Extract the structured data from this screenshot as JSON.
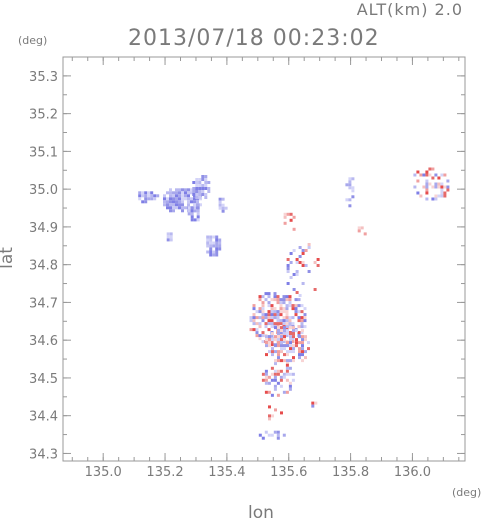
{
  "header": {
    "alt_label": "ALT(km)  2.0",
    "timestamp": "2013/07/18 00:23:02"
  },
  "chart_data": {
    "type": "heatmap",
    "title": "2013/07/18 00:23:02",
    "subtitle": "ALT(km)  2.0",
    "xlabel": "lon",
    "ylabel": "lat",
    "x_unit": "(deg)",
    "y_unit": "(deg)",
    "xlim": [
      134.87,
      136.17
    ],
    "ylim": [
      34.28,
      35.35
    ],
    "x_ticks": [
      135.0,
      135.2,
      135.4,
      135.6,
      135.8,
      136.0
    ],
    "x_tick_labels": [
      "135.0",
      "135.2",
      "135.4",
      "135.6",
      "135.8",
      "136.0"
    ],
    "y_ticks": [
      34.3,
      34.4,
      34.5,
      34.6,
      34.7,
      34.8,
      34.9,
      35.0,
      35.1,
      35.2,
      35.3
    ],
    "y_tick_labels": [
      "34.3",
      "34.4",
      "34.5",
      "34.6",
      "34.7",
      "34.8",
      "34.9",
      "35.0",
      "35.1",
      "35.2",
      "35.3"
    ],
    "grid": false,
    "colors": {
      "negative": "#7f7fe6",
      "positive": "#e64c4c",
      "axis": "#999999"
    },
    "clusters": [
      {
        "lon": 135.14,
        "lat": 34.985,
        "rlon": 0.03,
        "rlat": 0.012,
        "sign": -1,
        "density": "solid"
      },
      {
        "lon": 135.25,
        "lat": 34.975,
        "rlon": 0.06,
        "rlat": 0.03,
        "sign": -1,
        "density": "solid"
      },
      {
        "lon": 135.31,
        "lat": 35.01,
        "rlon": 0.025,
        "rlat": 0.03,
        "sign": -1,
        "density": "solid"
      },
      {
        "lon": 135.29,
        "lat": 34.945,
        "rlon": 0.02,
        "rlat": 0.02,
        "sign": -1,
        "density": "solid"
      },
      {
        "lon": 135.35,
        "lat": 34.855,
        "rlon": 0.02,
        "rlat": 0.025,
        "sign": -1,
        "density": "solid"
      },
      {
        "lon": 135.38,
        "lat": 34.965,
        "rlon": 0.01,
        "rlat": 0.015,
        "sign": -1,
        "density": "solid"
      },
      {
        "lon": 135.21,
        "lat": 34.88,
        "rlon": 0.008,
        "rlat": 0.008,
        "sign": -1,
        "density": "solid"
      },
      {
        "lon": 135.56,
        "lat": 34.66,
        "rlon": 0.09,
        "rlat": 0.07,
        "sign": 0,
        "density": "dense"
      },
      {
        "lon": 135.59,
        "lat": 34.59,
        "rlon": 0.07,
        "rlat": 0.05,
        "sign": 0,
        "density": "dense"
      },
      {
        "lon": 135.56,
        "lat": 34.5,
        "rlon": 0.05,
        "rlat": 0.04,
        "sign": 0,
        "density": "medium"
      },
      {
        "lon": 135.64,
        "lat": 34.79,
        "rlon": 0.05,
        "rlat": 0.07,
        "sign": 0,
        "density": "sparse"
      },
      {
        "lon": 135.55,
        "lat": 34.41,
        "rlon": 0.03,
        "rlat": 0.02,
        "sign": 1,
        "density": "sparse"
      },
      {
        "lon": 135.54,
        "lat": 34.355,
        "rlon": 0.04,
        "rlat": 0.008,
        "sign": -1,
        "density": "sparse"
      },
      {
        "lon": 135.67,
        "lat": 34.43,
        "rlon": 0.01,
        "rlat": 0.01,
        "sign": 0,
        "density": "medium"
      },
      {
        "lon": 135.83,
        "lat": 34.9,
        "rlon": 0.02,
        "rlat": 0.02,
        "sign": 0,
        "density": "sparse"
      },
      {
        "lon": 135.6,
        "lat": 34.92,
        "rlon": 0.02,
        "rlat": 0.02,
        "sign": 1,
        "density": "sparse"
      },
      {
        "lon": 136.06,
        "lat": 35.02,
        "rlon": 0.06,
        "rlat": 0.04,
        "sign": 0,
        "density": "medium"
      },
      {
        "lon": 135.79,
        "lat": 35.0,
        "rlon": 0.01,
        "rlat": 0.05,
        "sign": -1,
        "density": "sparse"
      }
    ]
  }
}
